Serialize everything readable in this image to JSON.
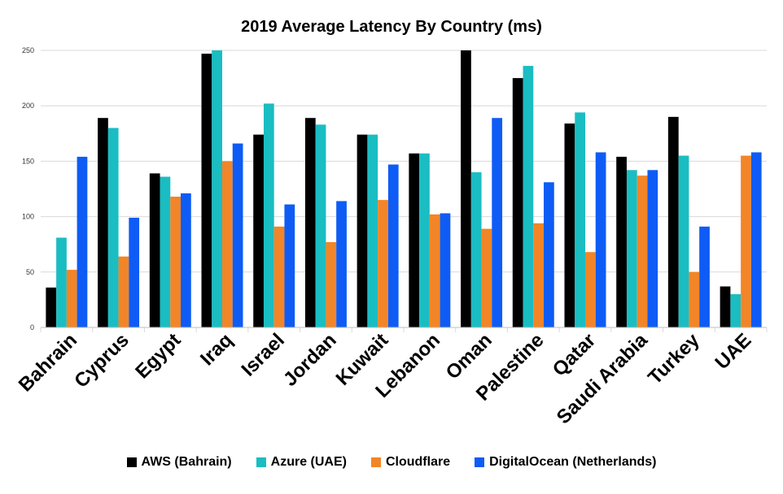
{
  "chart_data": {
    "type": "bar",
    "title": "2019 Average Latency By Country (ms)",
    "xlabel": "",
    "ylabel": "",
    "ylim": [
      0,
      250
    ],
    "yticks": [
      "0",
      "50",
      "100",
      "150",
      "200",
      "250"
    ],
    "grid": true,
    "legend_position": "bottom",
    "categories": [
      "Bahrain",
      "Cyprus",
      "Egypt",
      "Iraq",
      "Israel",
      "Jordan",
      "Kuwait",
      "Lebanon",
      "Oman",
      "Palestine",
      "Qatar",
      "Saudi Arabia",
      "Turkey",
      "UAE"
    ],
    "series": [
      {
        "name": "AWS (Bahrain)",
        "color": "#000000",
        "values": [
          36,
          189,
          139,
          247,
          174,
          189,
          174,
          157,
          252,
          225,
          184,
          154,
          190,
          37
        ]
      },
      {
        "name": "Azure (UAE)",
        "color": "#1ABDC2",
        "values": [
          81,
          180,
          136,
          252,
          202,
          183,
          174,
          157,
          140,
          236,
          194,
          142,
          155,
          30
        ]
      },
      {
        "name": "Cloudflare",
        "color": "#F28527",
        "values": [
          52,
          64,
          118,
          150,
          91,
          77,
          115,
          102,
          89,
          94,
          68,
          137,
          50,
          155
        ]
      },
      {
        "name": "DigitalOcean (Netherlands)",
        "color": "#0E5CF5",
        "values": [
          154,
          99,
          121,
          166,
          111,
          114,
          147,
          103,
          189,
          131,
          158,
          142,
          91,
          158
        ]
      }
    ]
  }
}
